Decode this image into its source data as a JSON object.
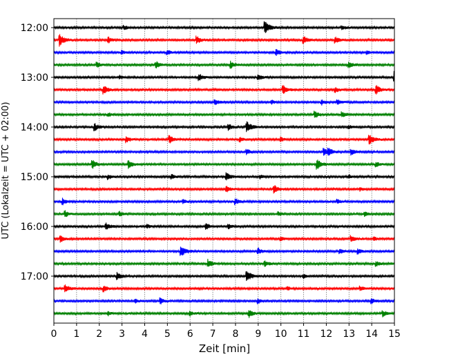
{
  "chart_data": {
    "type": "line",
    "title": "",
    "xlabel": "Zeit  [min]",
    "ylabel": "UTC (Lokalzeit = UTC + 02:00)",
    "xlim": [
      0,
      15
    ],
    "x_ticks": [
      "0",
      "1",
      "2",
      "3",
      "4",
      "5",
      "6",
      "7",
      "8",
      "9",
      "10",
      "11",
      "12",
      "13",
      "14",
      "15"
    ],
    "y_time_ticks": [
      {
        "label": "12:00",
        "trace_index": 0
      },
      {
        "label": "13:00",
        "trace_index": 4
      },
      {
        "label": "14:00",
        "trace_index": 8
      },
      {
        "label": "15:00",
        "trace_index": 12
      },
      {
        "label": "16:00",
        "trace_index": 16
      },
      {
        "label": "17:00",
        "trace_index": 20
      }
    ],
    "grid_x": true,
    "trace_interval_min": 15,
    "color_cycle": [
      "#000000",
      "#ff0000",
      "#0000ff",
      "#008000"
    ],
    "traces": [
      {
        "start": "12:00",
        "events": [
          [
            9.3,
            1.0
          ],
          [
            3.1,
            0.35
          ],
          [
            12.7,
            0.35
          ]
        ]
      },
      {
        "start": "12:15",
        "events": [
          [
            0.25,
            1.0
          ],
          [
            2.4,
            0.5
          ],
          [
            6.3,
            0.6
          ],
          [
            11.0,
            0.6
          ],
          [
            12.4,
            0.5
          ]
        ]
      },
      {
        "start": "12:30",
        "events": [
          [
            3.0,
            0.3
          ],
          [
            5.0,
            0.4
          ],
          [
            9.8,
            0.5
          ],
          [
            13.8,
            0.3
          ]
        ]
      },
      {
        "start": "12:45",
        "events": [
          [
            1.9,
            0.4
          ],
          [
            4.5,
            0.6
          ],
          [
            7.8,
            0.6
          ],
          [
            13.0,
            0.5
          ]
        ]
      },
      {
        "start": "13:00",
        "events": [
          [
            6.4,
            0.6
          ],
          [
            9.0,
            0.5
          ],
          [
            15.0,
            1.0
          ],
          [
            2.9,
            0.3
          ]
        ]
      },
      {
        "start": "13:15",
        "events": [
          [
            2.2,
            0.7
          ],
          [
            10.1,
            0.7
          ],
          [
            12.4,
            0.4
          ],
          [
            14.2,
            0.7
          ]
        ]
      },
      {
        "start": "13:30",
        "events": [
          [
            7.1,
            0.5
          ],
          [
            9.6,
            0.3
          ],
          [
            11.8,
            0.4
          ],
          [
            12.5,
            0.4
          ]
        ]
      },
      {
        "start": "13:45",
        "events": [
          [
            2.4,
            0.3
          ],
          [
            11.5,
            0.6
          ],
          [
            12.7,
            0.5
          ]
        ]
      },
      {
        "start": "14:00",
        "events": [
          [
            1.8,
            0.6
          ],
          [
            7.7,
            0.5
          ],
          [
            8.5,
            0.9
          ],
          [
            13.0,
            0.3
          ]
        ]
      },
      {
        "start": "14:15",
        "events": [
          [
            3.2,
            0.5
          ],
          [
            5.1,
            0.6
          ],
          [
            8.2,
            0.4
          ],
          [
            10.0,
            0.4
          ],
          [
            13.9,
            0.8
          ]
        ]
      },
      {
        "start": "14:30",
        "events": [
          [
            8.5,
            0.4
          ],
          [
            11.9,
            0.6
          ],
          [
            12.1,
            0.6
          ],
          [
            13.1,
            0.5
          ]
        ]
      },
      {
        "start": "14:45",
        "events": [
          [
            1.7,
            0.7
          ],
          [
            3.3,
            0.6
          ],
          [
            11.6,
            0.8
          ],
          [
            14.2,
            0.4
          ]
        ]
      },
      {
        "start": "15:00",
        "events": [
          [
            2.4,
            0.4
          ],
          [
            5.2,
            0.4
          ],
          [
            7.6,
            0.7
          ],
          [
            9.1,
            0.3
          ],
          [
            13.0,
            0.3
          ]
        ]
      },
      {
        "start": "15:15",
        "events": [
          [
            7.6,
            0.5
          ],
          [
            9.7,
            0.7
          ],
          [
            13.5,
            0.3
          ]
        ]
      },
      {
        "start": "15:30",
        "events": [
          [
            0.4,
            0.5
          ],
          [
            5.7,
            0.3
          ],
          [
            8.0,
            0.5
          ],
          [
            12.5,
            0.3
          ]
        ]
      },
      {
        "start": "15:45",
        "events": [
          [
            0.5,
            0.5
          ],
          [
            2.9,
            0.4
          ],
          [
            9.9,
            0.3
          ],
          [
            13.7,
            0.4
          ]
        ]
      },
      {
        "start": "16:00",
        "events": [
          [
            2.3,
            0.6
          ],
          [
            6.7,
            0.5
          ],
          [
            7.7,
            0.4
          ],
          [
            4.1,
            0.3
          ]
        ]
      },
      {
        "start": "16:15",
        "events": [
          [
            0.3,
            0.6
          ],
          [
            10.0,
            0.4
          ],
          [
            13.1,
            0.5
          ],
          [
            14.1,
            0.3
          ]
        ]
      },
      {
        "start": "16:30",
        "events": [
          [
            5.6,
            0.9
          ],
          [
            9.0,
            0.5
          ],
          [
            12.6,
            0.4
          ],
          [
            13.4,
            0.4
          ]
        ]
      },
      {
        "start": "16:45",
        "events": [
          [
            6.8,
            0.7
          ],
          [
            9.3,
            0.5
          ],
          [
            14.2,
            0.4
          ]
        ]
      },
      {
        "start": "17:00",
        "events": [
          [
            2.8,
            0.6
          ],
          [
            8.5,
            0.9
          ],
          [
            11.0,
            0.3
          ]
        ]
      },
      {
        "start": "17:15",
        "events": [
          [
            0.5,
            0.7
          ],
          [
            2.2,
            0.5
          ],
          [
            13.5,
            0.4
          ],
          [
            10.3,
            0.3
          ]
        ]
      },
      {
        "start": "17:30",
        "events": [
          [
            3.6,
            0.3
          ],
          [
            4.7,
            0.5
          ],
          [
            9.0,
            0.4
          ],
          [
            14.0,
            0.4
          ]
        ]
      },
      {
        "start": "17:45",
        "events": [
          [
            2.4,
            0.3
          ],
          [
            6.0,
            0.4
          ],
          [
            8.6,
            0.6
          ],
          [
            14.5,
            0.5
          ]
        ]
      }
    ]
  }
}
